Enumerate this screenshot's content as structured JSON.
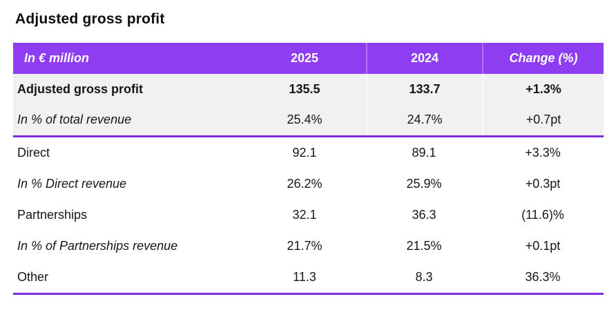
{
  "page_title": "Adjusted gross profit",
  "colors": {
    "accent_purple": "#8E3DF2",
    "divider_purple": "#7C2BDD",
    "shaded_row_gray": "#F1F1F2"
  },
  "table": {
    "columns": [
      "In € million",
      "2025",
      "2024",
      "Change (%)"
    ],
    "rows": [
      {
        "label": "Adjusted gross profit",
        "v2025": "135.5",
        "v2024": "133.7",
        "change": "+1.3%"
      },
      {
        "label": "In % of total revenue",
        "v2025": "25.4%",
        "v2024": "24.7%",
        "change": "+0.7pt"
      },
      {
        "label": "Direct",
        "v2025": "92.1",
        "v2024": "89.1",
        "change": "+3.3%"
      },
      {
        "label": "In % Direct revenue",
        "v2025": "26.2%",
        "v2024": "25.9%",
        "change": "+0.3pt"
      },
      {
        "label": "Partnerships",
        "v2025": "32.1",
        "v2024": "36.3",
        "change": "(11.6)%"
      },
      {
        "label": "In % of Partnerships revenue",
        "v2025": "21.7%",
        "v2024": "21.5%",
        "change": "+0.1pt"
      },
      {
        "label": "Other",
        "v2025": "11.3",
        "v2024": "8.3",
        "change": "36.3%"
      }
    ]
  }
}
